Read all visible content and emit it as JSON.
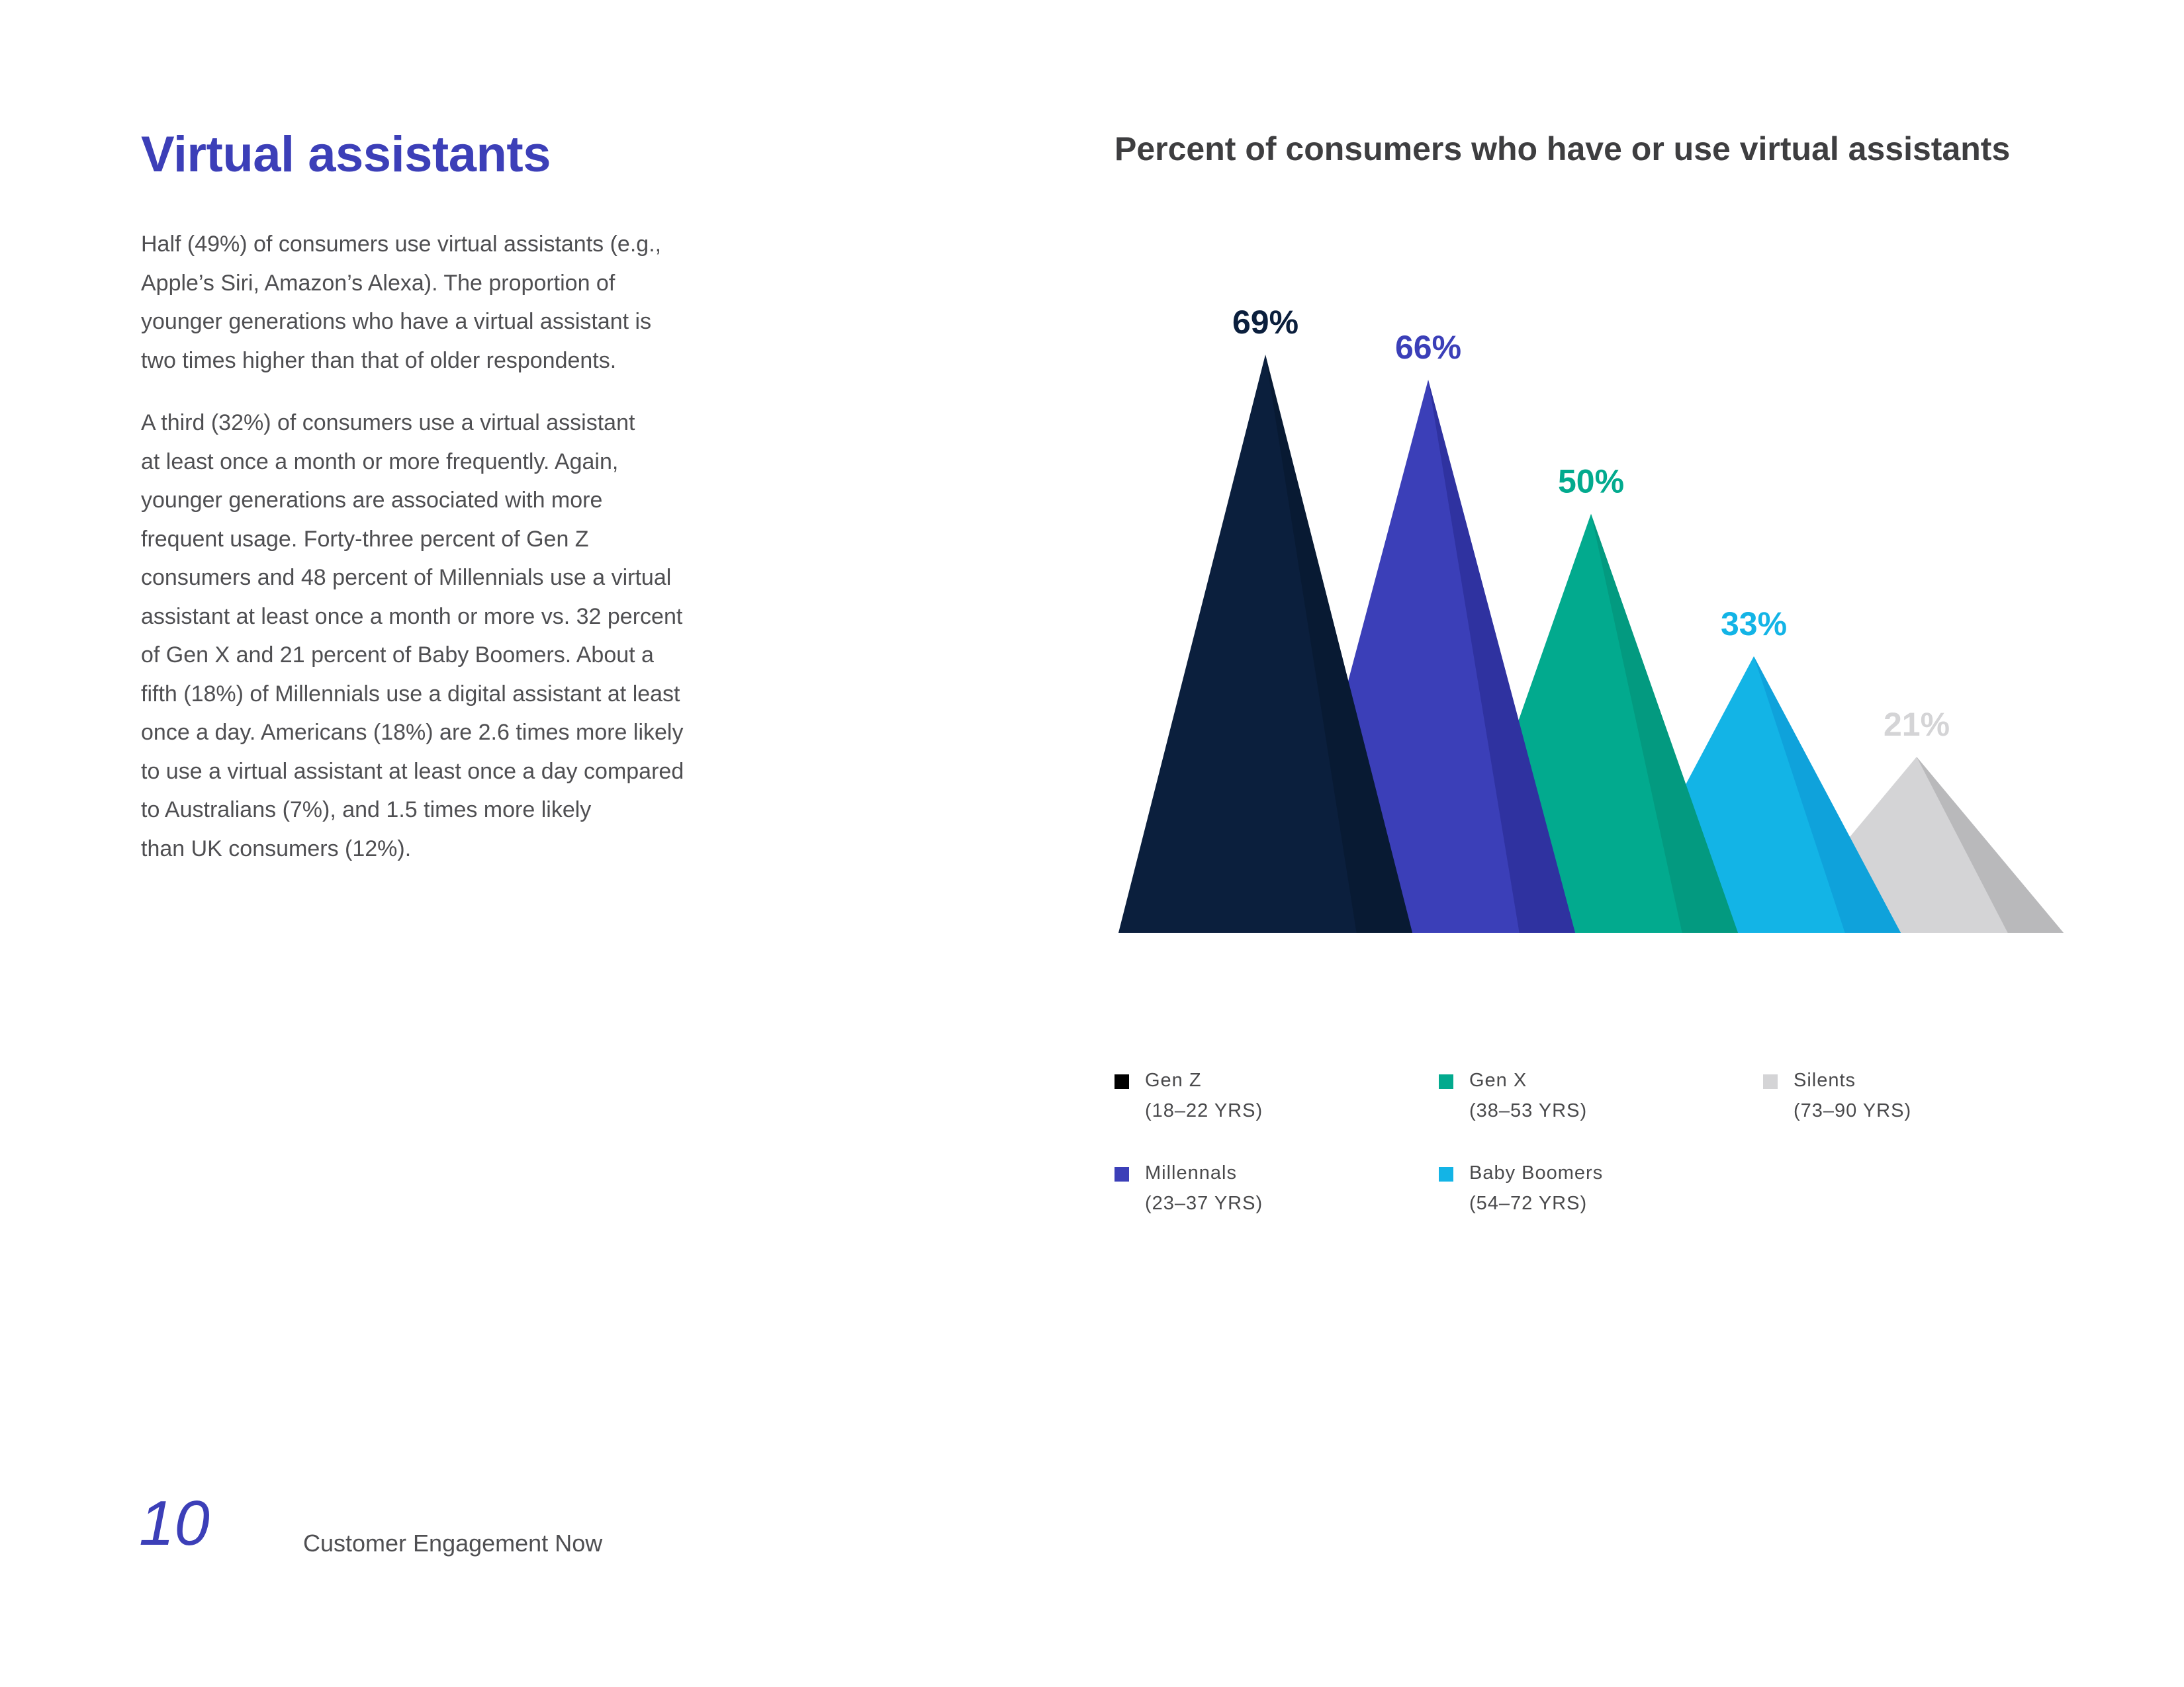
{
  "heading": "Virtual assistants",
  "paragraphs": [
    [
      "Half (49%) of consumers use virtual assistants (e.g.,",
      "Apple’s Siri, Amazon’s Alexa). The proportion of",
      "younger generations who have a virtual assistant is",
      "two times higher than that of older respondents."
    ],
    [
      "A third (32%) of consumers use a virtual assistant",
      "at least once a month or more frequently.  Again,",
      "younger generations are associated with more",
      "frequent usage. Forty-three percent of Gen Z",
      "consumers and 48 percent of Millennials use a virtual",
      "assistant at least once a month or more vs. 32 percent",
      "of Gen X and 21 percent of Baby Boomers. About a",
      "fifth (18%) of Millennials use a digital assistant at least",
      "once a day. Americans (18%) are 2.6 times more likely",
      "to use a virtual assistant at least once a day compared",
      "to Australians (7%), and 1.5 times more likely",
      "than UK consumers (12%)."
    ]
  ],
  "chart_data": {
    "type": "bar",
    "title": "Percent of consumers who have or use virtual assistants",
    "categories": [
      "Gen Z",
      "Millennals",
      "Gen X",
      "Baby Boomers",
      "Silents"
    ],
    "values": [
      69,
      66,
      50,
      33,
      21
    ],
    "data_labels": [
      "69%",
      "66%",
      "50%",
      "33%",
      "21%"
    ],
    "ylim": [
      0,
      75
    ],
    "grid": false,
    "colors": [
      "#0b1f3d",
      "#3b3fb8",
      "#02aa8e",
      "#13b4e6",
      "#d4d4d6"
    ],
    "shade_colors": [
      "#081a33",
      "#2f32a0",
      "#039a80",
      "#0fa2db",
      "#b9b9bb"
    ],
    "label_colors": [
      "#0b1f3d",
      "#3b3fb8",
      "#02aa8e",
      "#13b4e6",
      "#d4d4d6"
    ],
    "legend_placement": "bottom",
    "legend": [
      {
        "label": "Gen Z",
        "sub": "(18–22 YRS)",
        "color": "#000000"
      },
      {
        "label": "Millennals",
        "sub": "(23–37 YRS)",
        "color": "#3b3fb8"
      },
      {
        "label": "Gen X",
        "sub": "(38–53 YRS)",
        "color": "#02aa8e"
      },
      {
        "label": "Baby Boomers",
        "sub": "(54–72 YRS)",
        "color": "#13b4e6"
      },
      {
        "label": "Silents",
        "sub": "(73–90 YRS)",
        "color": "#d4d4d6"
      }
    ]
  },
  "footer": {
    "page_number": "10",
    "text": "Customer Engagement Now"
  }
}
